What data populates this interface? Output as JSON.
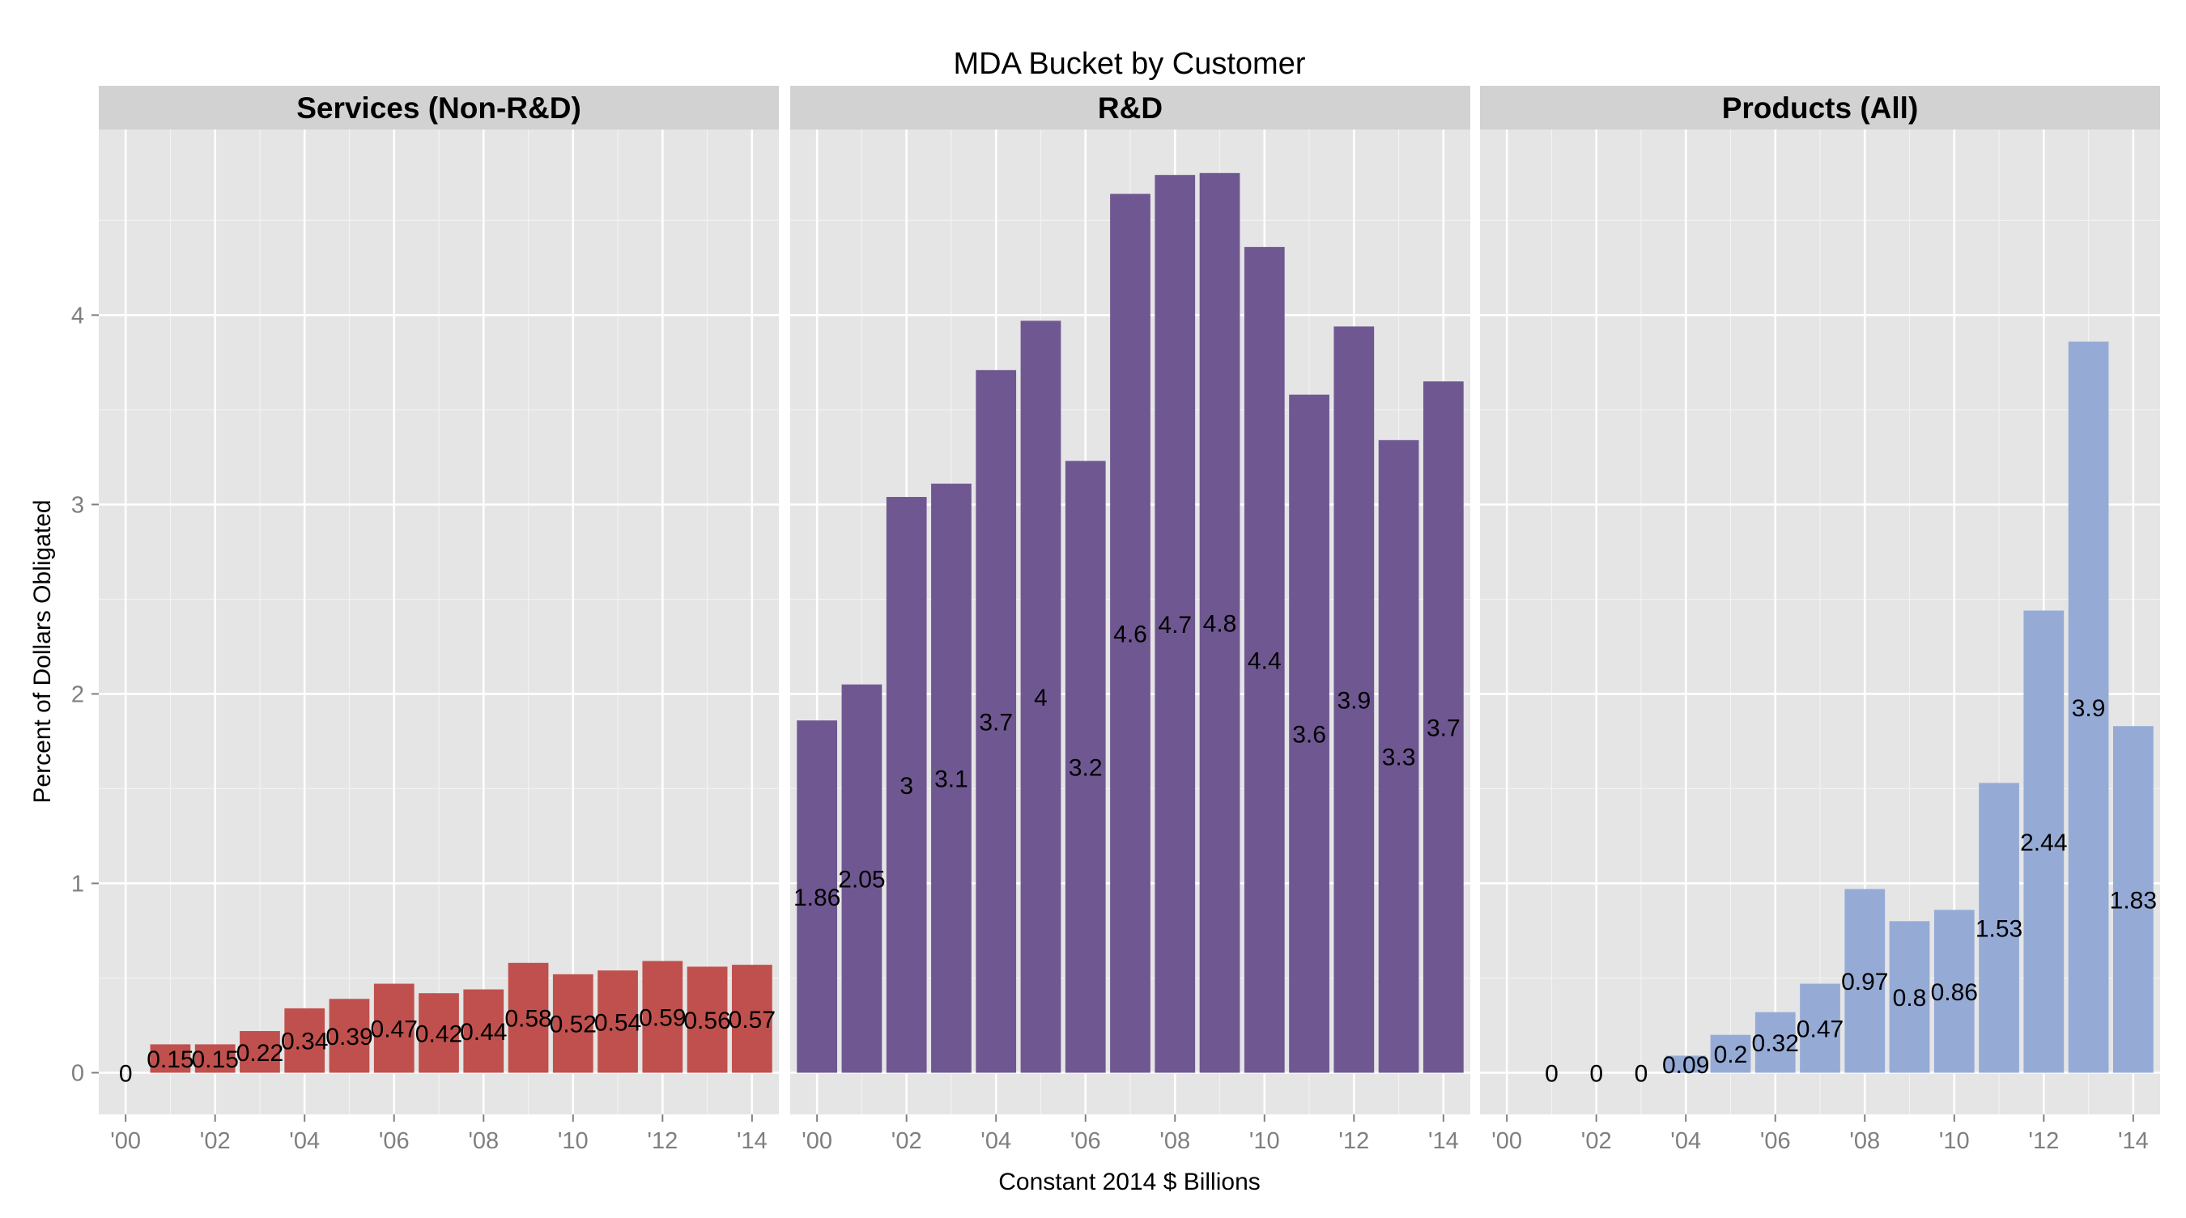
{
  "chart_data": {
    "type": "bar",
    "title": "MDA Bucket by Customer",
    "xlabel": "Constant 2014 $ Billions",
    "ylabel": "Percent of Dollars Obligated",
    "x": [
      2000,
      2001,
      2002,
      2003,
      2004,
      2005,
      2006,
      2007,
      2008,
      2009,
      2010,
      2011,
      2012,
      2013,
      2014
    ],
    "x_ticks": [
      "'00",
      "'02",
      "'04",
      "'06",
      "'08",
      "'10",
      "'12",
      "'14"
    ],
    "x_tick_years": [
      2000,
      2002,
      2004,
      2006,
      2008,
      2010,
      2012,
      2014
    ],
    "xlim": [
      1999.4,
      2014.6
    ],
    "y_ticks": [
      "0",
      "1",
      "2",
      "3",
      "4"
    ],
    "ylim": [
      -0.22,
      4.98
    ],
    "grid": true,
    "panels": [
      {
        "title": "Services (Non-R&D)",
        "color": "#c0504d",
        "values": [
          0,
          0.15,
          0.15,
          0.22,
          0.34,
          0.39,
          0.47,
          0.42,
          0.44,
          0.58,
          0.52,
          0.54,
          0.59,
          0.56,
          0.57
        ],
        "labels": [
          "0",
          "0.15",
          "0.15",
          "0.22",
          "0.34",
          "0.39",
          "0.47",
          "0.42",
          "0.44",
          "0.58",
          "0.52",
          "0.54",
          "0.59",
          "0.56",
          "0.57"
        ]
      },
      {
        "title": "R&D",
        "color": "#6f5891",
        "values": [
          1.86,
          2.05,
          3.04,
          3.11,
          3.71,
          3.97,
          3.23,
          4.64,
          4.74,
          4.75,
          4.36,
          3.58,
          3.94,
          3.34,
          3.65
        ],
        "labels": [
          "1.86",
          "2.05",
          "3",
          "3.1",
          "3.7",
          "4",
          "3.2",
          "4.6",
          "4.7",
          "4.8",
          "4.4",
          "3.6",
          "3.9",
          "3.3",
          "3.7"
        ]
      },
      {
        "title": "Products (All)",
        "color": "#95abd6",
        "values": [
          null,
          0,
          0,
          0,
          0.09,
          0.2,
          0.32,
          0.47,
          0.97,
          0.8,
          0.86,
          1.53,
          2.44,
          3.86,
          1.83
        ],
        "labels": [
          null,
          "0",
          "0",
          "0",
          "0.09",
          "0.2",
          "0.32",
          "0.47",
          "0.97",
          "0.8",
          "0.86",
          "1.53",
          "2.44",
          "3.9",
          "1.83"
        ]
      }
    ]
  }
}
